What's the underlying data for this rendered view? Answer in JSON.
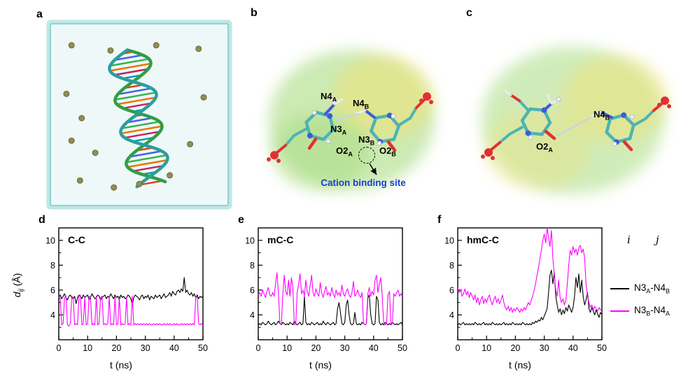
{
  "panels": {
    "a": {
      "letter": "a"
    },
    "b": {
      "letter": "b",
      "labels": {
        "n4a": {
          "text": "N4",
          "sub": "A"
        },
        "n4b": {
          "text": "N4",
          "sub": "B"
        },
        "n3a": {
          "text": "N3",
          "sub": "A"
        },
        "n3b": {
          "text": "N3",
          "sub": "B"
        },
        "o2a": {
          "text": "O2",
          "sub": "A"
        },
        "o2b": {
          "text": "O2",
          "sub": "B"
        }
      },
      "annotation": "Cation  binding site",
      "annotation_color": "#1b3fd0"
    },
    "c": {
      "letter": "c",
      "labels": {
        "n4b": {
          "text": "N4",
          "sub": "B"
        },
        "o2a": {
          "text": "O2",
          "sub": "A"
        }
      }
    },
    "d": {
      "letter": "d"
    },
    "e": {
      "letter": "e"
    },
    "f": {
      "letter": "f"
    }
  },
  "axis": {
    "xlabel": "t (ns)",
    "ylabel_main": "d",
    "ylabel_sub": "ij",
    "ylabel_unit": "(Å)"
  },
  "legend": {
    "header_i": "i",
    "header_j": "j",
    "items": [
      {
        "p1": "N3",
        "s1": "A",
        "p2": "-N4",
        "s2": "B",
        "color": "#000000"
      },
      {
        "p1": "N3",
        "s1": "B",
        "p2": "-N4",
        "s2": "A",
        "color": "#ff00ff"
      }
    ]
  },
  "ions": [
    [
      0.1,
      0.1
    ],
    [
      0.33,
      0.13
    ],
    [
      0.6,
      0.1
    ],
    [
      0.85,
      0.12
    ],
    [
      0.07,
      0.38
    ],
    [
      0.16,
      0.52
    ],
    [
      0.1,
      0.65
    ],
    [
      0.24,
      0.72
    ],
    [
      0.15,
      0.88
    ],
    [
      0.35,
      0.92
    ],
    [
      0.5,
      0.9
    ],
    [
      0.68,
      0.85
    ],
    [
      0.8,
      0.67
    ],
    [
      0.88,
      0.4
    ]
  ],
  "chart_data": [
    {
      "type": "line",
      "title": "C-C",
      "xlabel": "t (ns)",
      "ylabel": "d_ij (Å)",
      "xlim": [
        0,
        50
      ],
      "ylim": [
        2,
        11
      ],
      "t_step": 0.5,
      "xticks": [
        0,
        10,
        20,
        30,
        40,
        50
      ],
      "xticks_minor": [
        5,
        15,
        25,
        35,
        45
      ],
      "yticks": [
        4,
        6,
        8,
        10
      ],
      "yticks_minor": [
        3,
        5,
        7,
        9
      ],
      "series": [
        {
          "name": "N3A-N4B",
          "color": "#000000",
          "values": [
            5.4,
            5.6,
            5.3,
            5.5,
            5.7,
            5.4,
            5.2,
            5.5,
            5.6,
            5.4,
            5.3,
            5.5,
            4.9,
            5.4,
            5.6,
            5.5,
            5.3,
            5.6,
            5.4,
            5.5,
            5.6,
            5.2,
            5.4,
            5.7,
            5.5,
            5.3,
            5.4,
            5.6,
            5.5,
            5.2,
            5.4,
            5.5,
            5.6,
            5.3,
            5.5,
            5.4,
            5.7,
            5.5,
            5.3,
            5.6,
            5.4,
            5.5,
            5.2,
            5.6,
            5.4,
            5.5,
            5.3,
            5.4,
            5.6,
            5.5,
            5.3,
            4.8,
            5.4,
            5.6,
            5.5,
            5.4,
            5.2,
            5.5,
            5.6,
            5.3,
            5.5,
            5.4,
            5.6,
            5.2,
            5.5,
            5.4,
            5.3,
            5.6,
            5.4,
            5.5,
            5.6,
            5.3,
            5.5,
            5.7,
            5.4,
            5.5,
            5.6,
            5.8,
            5.5,
            5.9,
            5.7,
            5.6,
            5.9,
            6.0,
            5.8,
            6.1,
            5.9,
            7.0,
            5.8,
            6.0,
            5.7,
            5.6,
            5.8,
            5.5,
            5.7,
            5.4,
            5.6,
            5.3,
            5.5,
            5.4,
            5.5
          ]
        },
        {
          "name": "N3B-N4A",
          "color": "#ff00ff",
          "values": [
            5.5,
            5.3,
            3.2,
            3.3,
            5.4,
            5.5,
            3.2,
            3.1,
            3.3,
            5.5,
            5.4,
            3.2,
            3.3,
            3.2,
            5.5,
            5.6,
            3.2,
            3.3,
            5.4,
            3.2,
            3.3,
            5.5,
            5.4,
            3.2,
            3.3,
            3.2,
            5.5,
            3.2,
            3.3,
            5.4,
            5.5,
            3.2,
            3.3,
            3.2,
            3.3,
            5.5,
            3.2,
            3.3,
            3.2,
            5.4,
            3.2,
            3.3,
            5.5,
            3.2,
            3.3,
            3.2,
            3.3,
            5.4,
            3.2,
            3.3,
            3.2,
            5.5,
            3.2,
            3.3,
            3.2,
            3.3,
            3.2,
            3.3,
            3.2,
            3.3,
            3.2,
            3.3,
            3.2,
            3.3,
            3.2,
            3.2,
            3.3,
            3.2,
            3.3,
            3.2,
            3.3,
            3.2,
            3.2,
            3.3,
            3.2,
            3.3,
            3.2,
            3.3,
            3.2,
            3.2,
            3.3,
            3.2,
            3.3,
            3.2,
            3.2,
            3.3,
            3.2,
            3.3,
            3.2,
            3.3,
            3.2,
            3.3,
            3.2,
            3.3,
            3.2,
            5.4,
            5.5,
            3.3,
            3.2,
            3.3,
            3.2
          ]
        }
      ]
    },
    {
      "type": "line",
      "title": "mC-C",
      "xlabel": "t (ns)",
      "ylabel": "d_ij (Å)",
      "xlim": [
        0,
        50
      ],
      "ylim": [
        2,
        11
      ],
      "t_step": 0.5,
      "xticks": [
        0,
        10,
        20,
        30,
        40,
        50
      ],
      "xticks_minor": [
        5,
        15,
        25,
        35,
        45
      ],
      "yticks": [
        4,
        6,
        8,
        10
      ],
      "yticks_minor": [
        3,
        5,
        7,
        9
      ],
      "series": [
        {
          "name": "N3A-N4B",
          "color": "#000000",
          "values": [
            3.2,
            3.3,
            3.2,
            3.4,
            3.3,
            3.2,
            3.3,
            3.5,
            3.3,
            3.2,
            3.3,
            3.4,
            3.2,
            3.3,
            3.5,
            3.3,
            3.2,
            3.4,
            3.3,
            3.2,
            3.3,
            3.2,
            3.4,
            3.3,
            3.2,
            3.5,
            3.3,
            3.2,
            3.3,
            3.4,
            3.2,
            3.3,
            5.5,
            3.4,
            3.2,
            3.3,
            3.2,
            3.4,
            3.3,
            3.2,
            3.3,
            3.4,
            3.2,
            3.3,
            3.2,
            3.5,
            3.3,
            3.2,
            3.4,
            3.3,
            3.2,
            3.3,
            3.4,
            3.2,
            3.3,
            4.5,
            5.0,
            4.2,
            3.3,
            3.2,
            3.4,
            4.8,
            5.2,
            4.0,
            3.3,
            3.2,
            3.3,
            4.2,
            3.3,
            3.2,
            3.3,
            3.2,
            3.4,
            3.3,
            3.2,
            3.3,
            5.4,
            5.6,
            4.0,
            3.3,
            3.2,
            3.3,
            5.5,
            5.2,
            3.4,
            3.2,
            3.3,
            3.2,
            3.4,
            3.3,
            3.2,
            3.3,
            3.2,
            3.4,
            3.3,
            3.2,
            3.3,
            3.2,
            3.3,
            3.4,
            3.2
          ]
        },
        {
          "name": "N3B-N4A",
          "color": "#ff00ff",
          "values": [
            5.6,
            5.8,
            5.5,
            6.0,
            5.7,
            5.4,
            5.9,
            6.2,
            5.6,
            5.5,
            5.8,
            5.5,
            6.5,
            7.4,
            5.8,
            3.3,
            3.2,
            5.6,
            7.2,
            5.9,
            5.6,
            6.8,
            5.5,
            7.0,
            6.2,
            3.2,
            3.3,
            5.8,
            6.5,
            7.3,
            5.7,
            6.0,
            5.5,
            6.8,
            5.9,
            5.5,
            6.4,
            7.2,
            5.8,
            5.5,
            6.1,
            5.7,
            5.5,
            6.6,
            5.8,
            5.4,
            5.9,
            6.3,
            5.6,
            5.8,
            5.5,
            6.2,
            5.7,
            5.4,
            6.0,
            5.6,
            5.8,
            5.5,
            6.4,
            5.7,
            5.5,
            5.9,
            6.1,
            5.6,
            5.4,
            5.8,
            6.7,
            5.5,
            5.7,
            6.0,
            5.6,
            5.4,
            5.8,
            3.3,
            3.2,
            3.3,
            5.7,
            6.2,
            5.5,
            5.9,
            5.6,
            6.8,
            7.2,
            5.8,
            6.5,
            7.0,
            5.5,
            3.3,
            3.2,
            3.3,
            5.6,
            5.9,
            3.2,
            3.3,
            5.7,
            5.5,
            5.8,
            6.0,
            5.5,
            5.7,
            5.5
          ]
        }
      ]
    },
    {
      "type": "line",
      "title": "hmC-C",
      "xlabel": "t (ns)",
      "ylabel": "d_ij (Å)",
      "xlim": [
        0,
        50
      ],
      "ylim": [
        2,
        11
      ],
      "t_step": 0.5,
      "xticks": [
        0,
        10,
        20,
        30,
        40,
        50
      ],
      "xticks_minor": [
        5,
        15,
        25,
        35,
        45
      ],
      "yticks": [
        4,
        6,
        8,
        10
      ],
      "yticks_minor": [
        3,
        5,
        7,
        9
      ],
      "series": [
        {
          "name": "N3A-N4B",
          "color": "#000000",
          "values": [
            3.2,
            3.3,
            3.2,
            3.3,
            3.4,
            3.2,
            3.3,
            3.2,
            3.3,
            3.2,
            3.3,
            3.2,
            3.4,
            3.3,
            3.2,
            3.3,
            3.2,
            3.3,
            3.4,
            3.2,
            3.3,
            3.2,
            3.3,
            3.2,
            3.4,
            3.3,
            3.2,
            3.3,
            3.2,
            3.3,
            3.2,
            3.3,
            3.4,
            3.2,
            3.3,
            3.2,
            3.3,
            3.2,
            3.4,
            3.3,
            3.2,
            3.3,
            3.2,
            3.3,
            3.2,
            3.4,
            3.3,
            3.2,
            3.3,
            3.2,
            3.3,
            3.2,
            3.4,
            3.3,
            3.5,
            3.4,
            3.6,
            3.5,
            3.8,
            3.6,
            3.9,
            4.2,
            4.5,
            5.8,
            7.2,
            7.6,
            6.5,
            7.4,
            5.5,
            4.8,
            4.2,
            4.5,
            4.0,
            4.4,
            4.1,
            4.6,
            4.3,
            4.8,
            4.5,
            4.2,
            4.6,
            5.5,
            7.0,
            6.2,
            7.3,
            5.8,
            6.8,
            5.5,
            4.8,
            5.2,
            5.8,
            4.5,
            4.2,
            4.6,
            4.3,
            4.0,
            4.4,
            4.1,
            3.8,
            4.2,
            4.0
          ]
        },
        {
          "name": "N3B-N4A",
          "color": "#ff00ff",
          "values": [
            6.2,
            5.8,
            6.0,
            5.5,
            5.7,
            6.1,
            5.6,
            5.9,
            5.4,
            5.8,
            5.5,
            5.2,
            5.6,
            5.0,
            5.4,
            4.8,
            5.2,
            5.5,
            4.9,
            5.3,
            5.0,
            5.4,
            5.6,
            5.1,
            4.8,
            5.2,
            5.5,
            5.0,
            5.3,
            4.9,
            5.2,
            5.6,
            5.0,
            4.6,
            4.4,
            4.7,
            4.3,
            4.6,
            4.2,
            4.5,
            4.3,
            4.6,
            4.4,
            4.2,
            4.5,
            4.3,
            4.6,
            4.4,
            4.7,
            5.0,
            4.8,
            5.2,
            5.5,
            6.0,
            6.5,
            7.2,
            7.8,
            8.5,
            9.2,
            10.0,
            10.5,
            9.8,
            11.0,
            10.2,
            9.5,
            10.8,
            8.5,
            7.2,
            6.0,
            5.5,
            6.8,
            5.4,
            5.0,
            5.3,
            4.8,
            5.2,
            6.5,
            8.0,
            9.2,
            8.8,
            9.5,
            9.0,
            9.3,
            8.8,
            9.4,
            9.6,
            9.0,
            9.3,
            8.6,
            6.5,
            5.5,
            5.0,
            4.6,
            4.8,
            4.4,
            4.7,
            4.5,
            4.3,
            4.6,
            4.4,
            4.5
          ]
        }
      ]
    }
  ]
}
